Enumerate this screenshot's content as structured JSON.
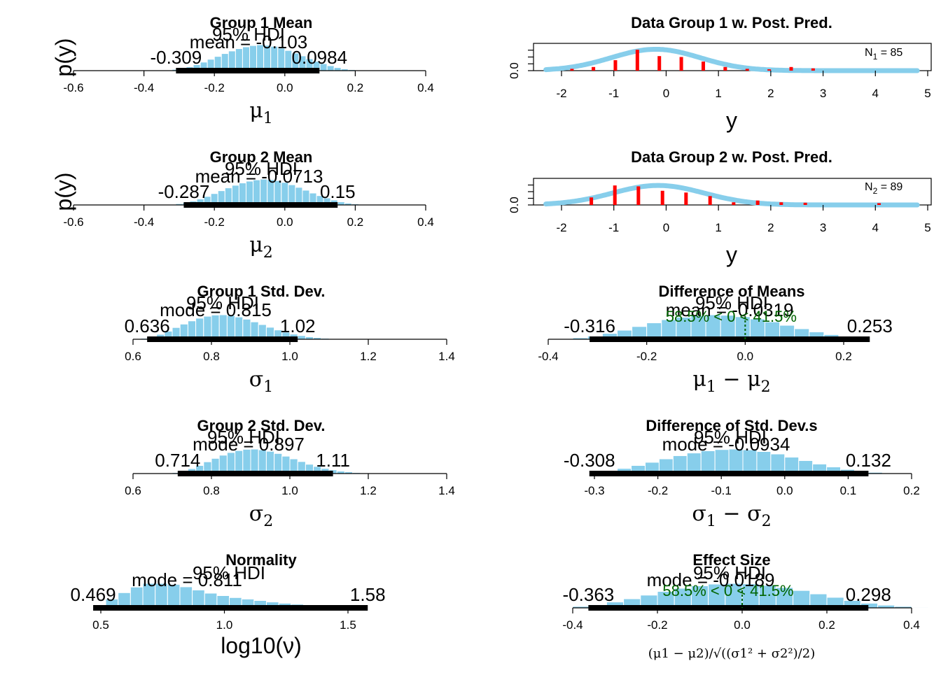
{
  "colors": {
    "bar": "#87CEEB",
    "data_points": "#FF0000",
    "hdi": "#000000",
    "comparison": "#006400"
  },
  "chart_data": [
    {
      "id": "g1mean",
      "type": "histogram",
      "title": "Group 1 Mean",
      "xlabel": "μ1",
      "xlim": [
        -0.6,
        0.4
      ],
      "xticks": [
        -0.6,
        -0.4,
        -0.2,
        0.0,
        0.2,
        0.4
      ],
      "xtick_labels": [
        "-0.6",
        "-0.4",
        "-0.2",
        "0.0",
        "0.2",
        "0.4"
      ],
      "bins": {
        "start": -0.34,
        "width": 0.02,
        "heights": [
          0.02,
          0.05,
          0.09,
          0.15,
          0.23,
          0.33,
          0.44,
          0.55,
          0.66,
          0.76,
          0.85,
          0.92,
          0.97,
          1.0,
          0.98,
          0.94,
          0.87,
          0.78,
          0.68,
          0.57,
          0.46,
          0.36,
          0.27,
          0.19,
          0.12,
          0.07,
          0.04,
          0.02
        ]
      },
      "center_label": "mean = -0.103",
      "hdi_label": "95% HDI",
      "hdi": [
        -0.309,
        0.0984
      ],
      "hdi_labels": [
        "-0.309",
        "0.0984"
      ]
    },
    {
      "id": "g2mean",
      "type": "histogram",
      "title": "Group 2 Mean",
      "xlabel": "μ2",
      "xlim": [
        -0.6,
        0.4
      ],
      "xticks": [
        -0.6,
        -0.4,
        -0.2,
        0.0,
        0.2,
        0.4
      ],
      "xtick_labels": [
        "-0.6",
        "-0.4",
        "-0.2",
        "0.0",
        "0.2",
        "0.4"
      ],
      "bins": {
        "start": -0.33,
        "width": 0.02,
        "heights": [
          0.02,
          0.05,
          0.09,
          0.15,
          0.23,
          0.33,
          0.44,
          0.55,
          0.66,
          0.76,
          0.85,
          0.92,
          0.97,
          1.0,
          0.98,
          0.94,
          0.87,
          0.78,
          0.68,
          0.57,
          0.46,
          0.36,
          0.27,
          0.19,
          0.12,
          0.07,
          0.04,
          0.02
        ]
      },
      "center_label": "mean = -0.0713",
      "hdi_label": "95% HDI",
      "hdi": [
        -0.287,
        0.15
      ],
      "hdi_labels": [
        "-0.287",
        "0.15"
      ]
    },
    {
      "id": "g1sd",
      "type": "histogram",
      "title": "Group 1 Std. Dev.",
      "xlabel": "σ1",
      "xlim": [
        0.6,
        1.4
      ],
      "xticks": [
        0.6,
        0.8,
        1.0,
        1.2,
        1.4
      ],
      "xtick_labels": [
        "0.6",
        "0.8",
        "1.0",
        "1.2",
        "1.4"
      ],
      "bins": {
        "start": 0.62,
        "width": 0.02,
        "heights": [
          0.04,
          0.1,
          0.2,
          0.33,
          0.48,
          0.62,
          0.75,
          0.86,
          0.94,
          0.99,
          1.0,
          0.97,
          0.91,
          0.82,
          0.71,
          0.6,
          0.49,
          0.38,
          0.29,
          0.21,
          0.15,
          0.1,
          0.07,
          0.04,
          0.02
        ]
      },
      "center_label": "mode = 0.815",
      "hdi_label": "95% HDI",
      "hdi": [
        0.636,
        1.02
      ],
      "hdi_labels": [
        "0.636",
        "1.02"
      ]
    },
    {
      "id": "g2sd",
      "type": "histogram",
      "title": "Group 2 Std. Dev.",
      "xlabel": "σ2",
      "xlim": [
        0.6,
        1.4
      ],
      "xticks": [
        0.6,
        0.8,
        1.0,
        1.2,
        1.4
      ],
      "xtick_labels": [
        "0.6",
        "0.8",
        "1.0",
        "1.2",
        "1.4"
      ],
      "bins": {
        "start": 0.7,
        "width": 0.02,
        "heights": [
          0.04,
          0.1,
          0.2,
          0.33,
          0.48,
          0.62,
          0.75,
          0.86,
          0.94,
          0.99,
          1.0,
          0.97,
          0.91,
          0.82,
          0.71,
          0.6,
          0.49,
          0.38,
          0.29,
          0.21,
          0.15,
          0.1,
          0.07,
          0.04,
          0.02
        ]
      },
      "center_label": "mode = 0.897",
      "hdi_label": "95% HDI",
      "hdi": [
        0.714,
        1.11
      ],
      "hdi_labels": [
        "0.714",
        "1.11"
      ]
    },
    {
      "id": "norm",
      "type": "histogram",
      "title": "Normality",
      "xlabel": "log10(ν)",
      "xlim": [
        0.47,
        1.75
      ],
      "xticks": [
        0.5,
        1.0,
        1.5
      ],
      "xtick_labels": [
        "0.5",
        "1.0",
        "1.5"
      ],
      "bins": {
        "start": 0.47,
        "width": 0.05,
        "heights": [
          0.12,
          0.36,
          0.62,
          0.85,
          1.0,
          1.0,
          0.96,
          0.86,
          0.73,
          0.6,
          0.5,
          0.42,
          0.36,
          0.3,
          0.24,
          0.19,
          0.15,
          0.11,
          0.07,
          0.04,
          0.02
        ]
      },
      "center_label": "mode = 0.811",
      "hdi_label": "95% HDI",
      "hdi": [
        0.469,
        1.58
      ],
      "hdi_labels": [
        "0.469",
        "1.58"
      ]
    },
    {
      "id": "diffmean",
      "type": "histogram",
      "title": "Difference of Means",
      "xlabel": "μ1 − μ2",
      "xlim": [
        -0.4,
        0.3
      ],
      "xticks": [
        -0.4,
        -0.2,
        0.0,
        0.2
      ],
      "xtick_labels": [
        "-0.4",
        "-0.2",
        "0.0",
        "0.2"
      ],
      "bins": {
        "start": -0.38,
        "width": 0.03,
        "heights": [
          0.02,
          0.06,
          0.13,
          0.24,
          0.37,
          0.52,
          0.67,
          0.8,
          0.9,
          0.97,
          1.0,
          0.98,
          0.92,
          0.83,
          0.71,
          0.57,
          0.43,
          0.3,
          0.19,
          0.11,
          0.06,
          0.03,
          0.01
        ]
      },
      "center_label": "mean = -0.0319",
      "hdi_label": "95% HDI",
      "hdi": [
        -0.316,
        0.253
      ],
      "hdi_labels": [
        "-0.316",
        "0.253"
      ],
      "comparison_label": "58.5% < 0 < 41.5%",
      "comparison_value": 0.0
    },
    {
      "id": "diffsd",
      "type": "histogram",
      "title": "Difference of Std. Dev.s",
      "xlabel": "σ1 − σ2",
      "xlim": [
        -0.3,
        0.2
      ],
      "xticks": [
        -0.3,
        -0.2,
        -0.1,
        0.0,
        0.1,
        0.2
      ],
      "xtick_labels": [
        "-0.3",
        "-0.2",
        "-0.1",
        "0.0",
        "0.1",
        "0.2"
      ],
      "bins": {
        "start": -0.33,
        "width": 0.022,
        "heights": [
          0.02,
          0.06,
          0.12,
          0.21,
          0.33,
          0.46,
          0.6,
          0.73,
          0.84,
          0.93,
          0.98,
          1.0,
          0.97,
          0.9,
          0.8,
          0.67,
          0.53,
          0.39,
          0.27,
          0.17,
          0.1,
          0.05,
          0.02
        ]
      },
      "center_label": "mode = -0.0934",
      "hdi_label": "95% HDI",
      "hdi": [
        -0.308,
        0.132
      ],
      "hdi_labels": [
        "-0.308",
        "0.132"
      ]
    },
    {
      "id": "effsize",
      "type": "histogram",
      "title": "Effect Size",
      "xlabel": "(μ1 − μ2)/√((σ1² + σ2²)/2)",
      "xlim": [
        -0.4,
        0.4
      ],
      "xticks": [
        -0.4,
        -0.2,
        0.0,
        0.2,
        0.4
      ],
      "xtick_labels": [
        "-0.4",
        "-0.2",
        "0.0",
        "0.2",
        "0.4"
      ],
      "bins": {
        "start": -0.44,
        "width": 0.04,
        "heights": [
          0.02,
          0.06,
          0.13,
          0.24,
          0.37,
          0.52,
          0.67,
          0.8,
          0.9,
          0.97,
          1.0,
          0.98,
          0.92,
          0.83,
          0.71,
          0.57,
          0.43,
          0.3,
          0.19,
          0.11,
          0.06,
          0.03
        ]
      },
      "center_label": "mode = -0.0189",
      "hdi_label": "95% HDI",
      "hdi": [
        -0.363,
        0.298
      ],
      "hdi_labels": [
        "-0.363",
        "0.298"
      ],
      "comparison_label": "58.5% < 0 < 41.5%",
      "comparison_value": 0.0
    },
    {
      "id": "ppc1",
      "type": "posterior_predictive",
      "title": "Data Group 1 w. Post. Pred.",
      "xlabel": "y",
      "ylabel": "p(y)",
      "xlim": [
        -2.5,
        5
      ],
      "xticks": [
        -2,
        -1,
        0,
        1,
        2,
        3,
        4,
        5
      ],
      "xtick_labels": [
        "-2",
        "-1",
        "0",
        "1",
        "2",
        "3",
        "4",
        "5"
      ],
      "yticks": [
        0.0
      ],
      "ytick_labels": [
        "0.0"
      ],
      "ylim": [
        0,
        0.6
      ],
      "n_label_var": "N",
      "n_label_sub": "1",
      "n_label_value": " = 85",
      "curve": {
        "mean": -0.2,
        "sd": 0.85,
        "peak": 0.47
      },
      "data_spikes": [
        [
          -1.8,
          0.04
        ],
        [
          -1.39,
          0.08
        ],
        [
          -0.97,
          0.23
        ],
        [
          -0.55,
          0.46
        ],
        [
          -0.13,
          0.32
        ],
        [
          0.29,
          0.3
        ],
        [
          0.71,
          0.2
        ],
        [
          1.13,
          0.08
        ],
        [
          1.55,
          0.04
        ],
        [
          1.97,
          0.03
        ],
        [
          2.39,
          0.08
        ],
        [
          2.81,
          0.05
        ]
      ]
    },
    {
      "id": "ppc2",
      "type": "posterior_predictive",
      "title": "Data Group 2 w. Post. Pred.",
      "xlabel": "y",
      "ylabel": "p(y)",
      "xlim": [
        -2.5,
        5
      ],
      "xticks": [
        -2,
        -1,
        0,
        1,
        2,
        3,
        4,
        5
      ],
      "xtick_labels": [
        "-2",
        "-1",
        "0",
        "1",
        "2",
        "3",
        "4",
        "5"
      ],
      "yticks": [
        0.0
      ],
      "ytick_labels": [
        "0.0"
      ],
      "ylim": [
        0,
        0.6
      ],
      "n_label_var": "N",
      "n_label_sub": "2",
      "n_label_value": " = 89",
      "curve": {
        "mean": -0.15,
        "sd": 0.88,
        "peak": 0.44
      },
      "data_spikes": [
        [
          -1.43,
          0.17
        ],
        [
          -0.98,
          0.44
        ],
        [
          -0.53,
          0.42
        ],
        [
          -0.07,
          0.32
        ],
        [
          0.38,
          0.28
        ],
        [
          0.84,
          0.2
        ],
        [
          1.29,
          0.06
        ],
        [
          1.75,
          0.1
        ],
        [
          2.2,
          0.06
        ],
        [
          2.66,
          0.05
        ],
        [
          4.07,
          0.04
        ]
      ]
    }
  ]
}
